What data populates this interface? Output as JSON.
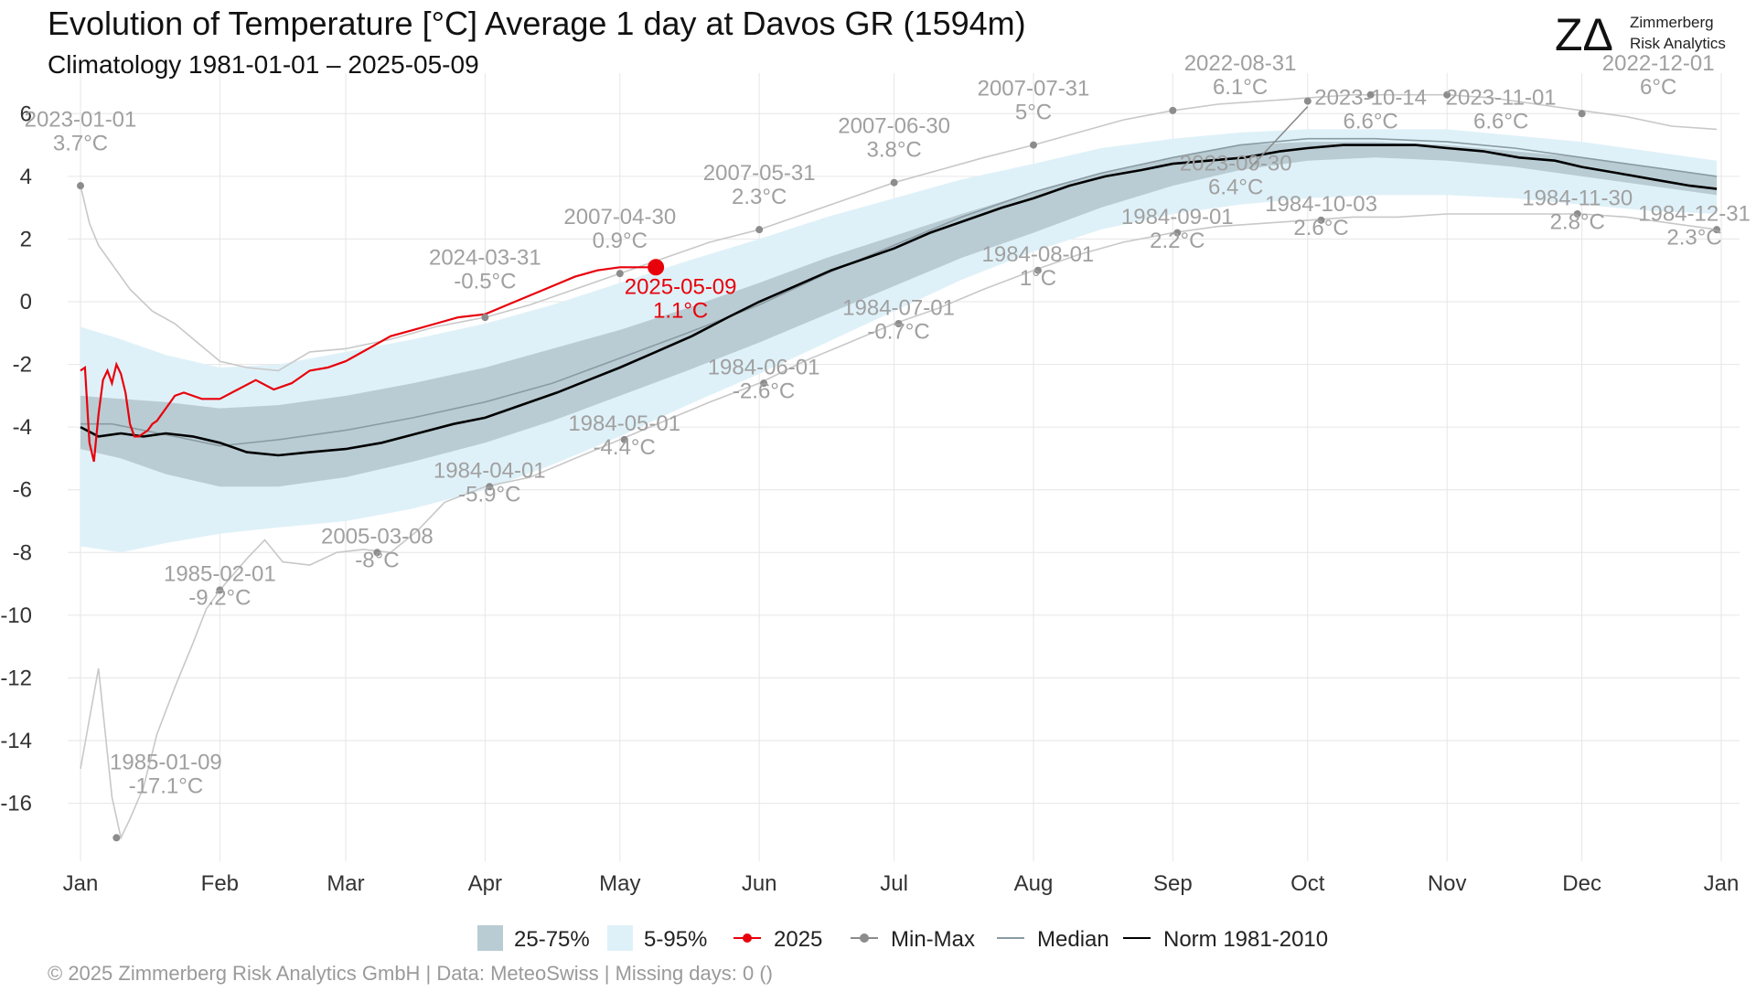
{
  "chart_data": {
    "type": "line",
    "title": "Evolution of Temperature [°C] Average 1 day at Davos  GR (1594m)",
    "subtitle": "Climatology 1981-01-01 – 2025-05-09",
    "footer": "©  2025 Zimmerberg Risk Analytics GmbH | Data: MeteoSwiss | Missing days: 0 ()",
    "logo": {
      "mark": "ZΔ",
      "line1": "Zimmerberg",
      "line2": "Risk Analytics"
    },
    "xlabel": "",
    "ylabel": "",
    "ylim": [
      -17.5,
      7
    ],
    "yticks": [
      6,
      4,
      2,
      0,
      -2,
      -4,
      -6,
      -8,
      -10,
      -12,
      -14,
      -16
    ],
    "xticks": [
      {
        "label": "Jan",
        "day": 1
      },
      {
        "label": "Feb",
        "day": 32
      },
      {
        "label": "Mar",
        "day": 60
      },
      {
        "label": "Apr",
        "day": 91
      },
      {
        "label": "May",
        "day": 121
      },
      {
        "label": "Jun",
        "day": 152
      },
      {
        "label": "Jul",
        "day": 182
      },
      {
        "label": "Aug",
        "day": 213
      },
      {
        "label": "Sep",
        "day": 244
      },
      {
        "label": "Oct",
        "day": 274
      },
      {
        "label": "Nov",
        "day": 305
      },
      {
        "label": "Dec",
        "day": 335
      },
      {
        "label": "Jan",
        "day": 366
      }
    ],
    "grid": true,
    "legend_position": "bottom",
    "legend": [
      {
        "key": "band_25_75",
        "label": "25-75%",
        "kind": "fill",
        "color": "#b9ccd3"
      },
      {
        "key": "band_5_95",
        "label": "5-95%",
        "kind": "fill",
        "color": "#dff1f8"
      },
      {
        "key": "current",
        "label": "2025",
        "kind": "linepoint",
        "color": "#e8000b"
      },
      {
        "key": "minmax",
        "label": "Min-Max",
        "kind": "linepoint",
        "color": "#8c8c8c"
      },
      {
        "key": "median",
        "label": "Median",
        "kind": "line",
        "color": "#8a9ba3"
      },
      {
        "key": "norm",
        "label": "Norm 1981-2010",
        "kind": "line",
        "color": "#000000"
      }
    ],
    "colors": {
      "band_25_75": "#b9ccd3",
      "band_5_95": "#dff1f8",
      "current": "#e8000b",
      "minmax_line": "#c8c8c8",
      "minmax_point": "#8c8c8c",
      "annotation": "#a0a0a0",
      "median": "#8a9ba3",
      "norm": "#000000",
      "grid": "#e6e6e6"
    },
    "series": [
      {
        "key": "max",
        "x": [
          1,
          3,
          5,
          8,
          12,
          17,
          22,
          27,
          32,
          38,
          45,
          52,
          60,
          70,
          80,
          91,
          101,
          111,
          121,
          131,
          141,
          152,
          162,
          172,
          182,
          192,
          202,
          213,
          223,
          233,
          244,
          254,
          264,
          274,
          284,
          294,
          305,
          315,
          325,
          335,
          345,
          355,
          365
        ],
        "y": [
          3.7,
          2.5,
          1.8,
          1.2,
          0.4,
          -0.3,
          -0.7,
          -1.3,
          -1.9,
          -2.1,
          -2.2,
          -1.6,
          -1.5,
          -1.2,
          -0.8,
          -0.5,
          -0.1,
          0.4,
          0.9,
          1.4,
          1.9,
          2.3,
          2.8,
          3.3,
          3.8,
          4.2,
          4.6,
          5.0,
          5.4,
          5.8,
          6.1,
          6.3,
          6.4,
          6.5,
          6.6,
          6.6,
          6.6,
          6.5,
          6.3,
          6.1,
          5.9,
          5.6,
          5.5
        ]
      },
      {
        "key": "min",
        "x": [
          1,
          5,
          8,
          10,
          12,
          15,
          18,
          22,
          26,
          29,
          32,
          38,
          42,
          46,
          52,
          58,
          64,
          70,
          76,
          82,
          91,
          101,
          111,
          121,
          131,
          141,
          152,
          162,
          172,
          182,
          192,
          202,
          213,
          223,
          233,
          244,
          254,
          264,
          274,
          284,
          294,
          305,
          315,
          325,
          335,
          345,
          355,
          365
        ],
        "y": [
          -14.9,
          -11.7,
          -15.8,
          -17.1,
          -16.5,
          -15.5,
          -13.8,
          -12.3,
          -10.9,
          -9.8,
          -9.2,
          -8.2,
          -7.6,
          -8.3,
          -8.4,
          -8.0,
          -7.9,
          -8.0,
          -7.3,
          -6.4,
          -5.9,
          -5.6,
          -5.0,
          -4.4,
          -3.8,
          -3.2,
          -2.6,
          -1.9,
          -1.3,
          -0.7,
          -0.2,
          0.4,
          1.0,
          1.5,
          1.9,
          2.2,
          2.4,
          2.5,
          2.6,
          2.7,
          2.7,
          2.8,
          2.8,
          2.8,
          2.8,
          2.7,
          2.5,
          2.3
        ]
      },
      {
        "key": "p95",
        "x": [
          1,
          10,
          20,
          32,
          45,
          60,
          75,
          91,
          106,
          121,
          136,
          152,
          167,
          182,
          197,
          213,
          228,
          244,
          259,
          274,
          289,
          305,
          320,
          335,
          350,
          365
        ],
        "y": [
          -0.8,
          -1.2,
          -1.7,
          -2.1,
          -2.0,
          -1.6,
          -1.2,
          -0.7,
          -0.1,
          0.6,
          1.3,
          2.0,
          2.7,
          3.3,
          3.9,
          4.4,
          4.9,
          5.2,
          5.4,
          5.5,
          5.5,
          5.5,
          5.3,
          5.1,
          4.8,
          4.5
        ]
      },
      {
        "key": "p75",
        "x": [
          1,
          10,
          20,
          32,
          45,
          60,
          75,
          91,
          106,
          121,
          136,
          152,
          167,
          182,
          197,
          213,
          228,
          244,
          259,
          274,
          289,
          305,
          320,
          335,
          350,
          365
        ],
        "y": [
          -3.0,
          -3.1,
          -3.2,
          -3.4,
          -3.3,
          -3.0,
          -2.6,
          -2.1,
          -1.5,
          -0.9,
          -0.2,
          0.6,
          1.4,
          2.1,
          2.8,
          3.5,
          4.1,
          4.6,
          5.0,
          5.1,
          5.1,
          5.0,
          4.8,
          4.6,
          4.3,
          4.0
        ]
      },
      {
        "key": "p25",
        "x": [
          1,
          10,
          20,
          32,
          45,
          60,
          75,
          91,
          106,
          121,
          136,
          152,
          167,
          182,
          197,
          213,
          228,
          244,
          259,
          274,
          289,
          305,
          320,
          335,
          350,
          365
        ],
        "y": [
          -4.7,
          -5.0,
          -5.5,
          -5.9,
          -5.9,
          -5.6,
          -5.1,
          -4.5,
          -3.8,
          -3.0,
          -2.2,
          -1.3,
          -0.4,
          0.5,
          1.4,
          2.2,
          3.0,
          3.7,
          4.2,
          4.5,
          4.6,
          4.5,
          4.3,
          4.0,
          3.7,
          3.4
        ]
      },
      {
        "key": "p05",
        "x": [
          1,
          10,
          20,
          32,
          45,
          60,
          75,
          91,
          106,
          121,
          136,
          152,
          167,
          182,
          197,
          213,
          228,
          244,
          259,
          274,
          289,
          305,
          320,
          335,
          350,
          365
        ],
        "y": [
          -7.8,
          -8.0,
          -7.7,
          -7.4,
          -7.2,
          -7.0,
          -6.6,
          -6.0,
          -5.2,
          -4.3,
          -3.3,
          -2.3,
          -1.3,
          -0.3,
          0.7,
          1.6,
          2.3,
          2.8,
          3.1,
          3.3,
          3.4,
          3.4,
          3.3,
          3.1,
          2.9,
          2.8
        ]
      },
      {
        "key": "median",
        "x": [
          1,
          8,
          15,
          22,
          32,
          45,
          60,
          75,
          91,
          106,
          121,
          136,
          152,
          167,
          182,
          197,
          213,
          228,
          244,
          259,
          274,
          289,
          305,
          320,
          335,
          350,
          365
        ],
        "y": [
          -3.9,
          -3.9,
          -4.1,
          -4.3,
          -4.6,
          -4.4,
          -4.1,
          -3.7,
          -3.2,
          -2.6,
          -1.8,
          -1.0,
          -0.1,
          0.9,
          1.8,
          2.7,
          3.5,
          4.1,
          4.6,
          5.0,
          5.2,
          5.2,
          5.1,
          4.9,
          4.6,
          4.3,
          4.0
        ]
      },
      {
        "key": "norm",
        "x": [
          1,
          5,
          10,
          15,
          20,
          26,
          32,
          38,
          45,
          52,
          60,
          68,
          76,
          84,
          91,
          99,
          107,
          114,
          121,
          129,
          137,
          145,
          152,
          160,
          168,
          176,
          182,
          190,
          198,
          206,
          213,
          221,
          229,
          237,
          244,
          252,
          260,
          268,
          274,
          282,
          290,
          298,
          305,
          313,
          321,
          329,
          335,
          343,
          351,
          359,
          365
        ],
        "y": [
          -4.0,
          -4.3,
          -4.2,
          -4.3,
          -4.2,
          -4.3,
          -4.5,
          -4.8,
          -4.9,
          -4.8,
          -4.7,
          -4.5,
          -4.2,
          -3.9,
          -3.7,
          -3.3,
          -2.9,
          -2.5,
          -2.1,
          -1.6,
          -1.1,
          -0.5,
          0.0,
          0.5,
          1.0,
          1.4,
          1.7,
          2.2,
          2.6,
          3.0,
          3.3,
          3.7,
          4.0,
          4.2,
          4.4,
          4.5,
          4.6,
          4.8,
          4.9,
          5.0,
          5.0,
          5.0,
          4.9,
          4.8,
          4.6,
          4.5,
          4.3,
          4.1,
          3.9,
          3.7,
          3.6
        ]
      },
      {
        "key": "current",
        "x": [
          1,
          2,
          3,
          4,
          5,
          6,
          7,
          8,
          9,
          10,
          11,
          12,
          13,
          14,
          15,
          16,
          17,
          18,
          20,
          22,
          24,
          26,
          28,
          32,
          36,
          40,
          44,
          48,
          52,
          56,
          60,
          65,
          70,
          75,
          80,
          85,
          91,
          96,
          101,
          106,
          111,
          116,
          121,
          126,
          129
        ],
        "y": [
          -2.2,
          -2.1,
          -4.5,
          -5.1,
          -3.6,
          -2.5,
          -2.2,
          -2.6,
          -2.0,
          -2.3,
          -2.9,
          -3.9,
          -4.3,
          -4.3,
          -4.2,
          -4.1,
          -3.9,
          -3.8,
          -3.4,
          -3.0,
          -2.9,
          -3.0,
          -3.1,
          -3.1,
          -2.8,
          -2.5,
          -2.8,
          -2.6,
          -2.2,
          -2.1,
          -1.9,
          -1.5,
          -1.1,
          -0.9,
          -0.7,
          -0.5,
          -0.4,
          -0.1,
          0.2,
          0.5,
          0.8,
          1.0,
          1.1,
          1.1,
          1.1
        ]
      }
    ],
    "current_point": {
      "date": "2025-05-09",
      "value_label": "1.1°C",
      "day": 129,
      "y": 1.1
    },
    "annotations": [
      {
        "date": "2023-01-01",
        "value": "3.7°C",
        "day": 1,
        "y": 3.7,
        "lx": 1,
        "ly": 5.0,
        "kind": "max"
      },
      {
        "date": "2024-03-31",
        "value": "-0.5°C",
        "day": 91,
        "y": -0.5,
        "lx": 91,
        "ly": 0.6,
        "kind": "max"
      },
      {
        "date": "2007-04-30",
        "value": "0.9°C",
        "day": 121,
        "y": 0.9,
        "lx": 121,
        "ly": 1.9,
        "kind": "max"
      },
      {
        "date": "2007-05-31",
        "value": "2.3°C",
        "day": 152,
        "y": 2.3,
        "lx": 152,
        "ly": 3.3,
        "kind": "max"
      },
      {
        "date": "2007-06-30",
        "value": "3.8°C",
        "day": 182,
        "y": 3.8,
        "lx": 182,
        "ly": 4.8,
        "kind": "max"
      },
      {
        "date": "2007-07-31",
        "value": "5°C",
        "day": 213,
        "y": 5.0,
        "lx": 213,
        "ly": 6.0,
        "kind": "max"
      },
      {
        "date": "2022-08-31",
        "value": "6.1°C",
        "day": 244,
        "y": 6.1,
        "lx": 259,
        "ly": 6.8,
        "kind": "max"
      },
      {
        "date": "2023-09-30",
        "value": "6.4°C",
        "day": 274,
        "y": 6.4,
        "lx": 258,
        "ly": 3.6,
        "kind": "max"
      },
      {
        "date": "2023-10-14",
        "value": "6.6°C",
        "day": 288,
        "y": 6.6,
        "lx": 288,
        "ly": 5.7,
        "kind": "max"
      },
      {
        "date": "2023-11-01",
        "value": "6.6°C",
        "day": 305,
        "y": 6.6,
        "lx": 317,
        "ly": 5.7,
        "kind": "max"
      },
      {
        "date": "2022-12-01",
        "value": "6°C",
        "day": 335,
        "y": 6.0,
        "lx": 352,
        "ly": 6.8,
        "kind": "max"
      },
      {
        "date": "1985-02-01",
        "value": "-9.2°C",
        "day": 32,
        "y": -9.2,
        "lx": 32,
        "ly": -9.5,
        "kind": "min"
      },
      {
        "date": "2005-03-08",
        "value": "-8°C",
        "day": 67,
        "y": -8.0,
        "lx": 67,
        "ly": -8.3,
        "kind": "min"
      },
      {
        "date": "1984-04-01",
        "value": "-5.9°C",
        "day": 92,
        "y": -5.9,
        "lx": 92,
        "ly": -6.2,
        "kind": "min"
      },
      {
        "date": "1984-05-01",
        "value": "-4.4°C",
        "day": 122,
        "y": -4.4,
        "lx": 122,
        "ly": -4.7,
        "kind": "min"
      },
      {
        "date": "1984-06-01",
        "value": "-2.6°C",
        "day": 153,
        "y": -2.6,
        "lx": 153,
        "ly": -2.9,
        "kind": "min"
      },
      {
        "date": "1984-07-01",
        "value": "-0.7°C",
        "day": 183,
        "y": -0.7,
        "lx": 183,
        "ly": -1.0,
        "kind": "min"
      },
      {
        "date": "1984-08-01",
        "value": "1°C",
        "day": 214,
        "y": 1.0,
        "lx": 214,
        "ly": 0.7,
        "kind": "min"
      },
      {
        "date": "1984-09-01",
        "value": "2.2°C",
        "day": 245,
        "y": 2.2,
        "lx": 245,
        "ly": 1.9,
        "kind": "min"
      },
      {
        "date": "1984-10-03",
        "value": "2.6°C",
        "day": 277,
        "y": 2.6,
        "lx": 277,
        "ly": 2.3,
        "kind": "min"
      },
      {
        "date": "1984-11-30",
        "value": "2.8°C",
        "day": 334,
        "y": 2.8,
        "lx": 334,
        "ly": 2.5,
        "kind": "min"
      },
      {
        "date": "1984-12-31",
        "value": "2.3°C",
        "day": 365,
        "y": 2.3,
        "lx": 360,
        "ly": 2.0,
        "kind": "min"
      },
      {
        "date": "1985-01-09",
        "value": "-17.1°C",
        "day": 9,
        "y": -17.1,
        "lx": 20,
        "ly": -15.5,
        "kind": "min"
      }
    ]
  }
}
